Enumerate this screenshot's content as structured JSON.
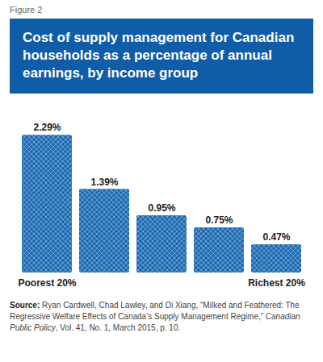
{
  "chart_data": {
    "type": "bar",
    "figure_label": "Figure 2",
    "title": "Cost of supply management for Canadian households as a percentage of annual earnings, by income group",
    "categories": [
      "Poorest 20%",
      null,
      null,
      null,
      "Richest 20%"
    ],
    "values": [
      2.29,
      1.39,
      0.95,
      0.75,
      0.47
    ],
    "value_labels": [
      "2.29%",
      "1.39%",
      "0.95%",
      "0.75%",
      "0.47%"
    ],
    "data_labels": true,
    "color": "#1f6cb3",
    "ylim": [
      0,
      2.6
    ],
    "tick_labels": "x",
    "grid": false,
    "source": {
      "label": "Source:",
      "text": "Ryan Cardwell, Chad Lawley, and Di Xiang, “Milked and Feathered: The Regressive Welfare Effects of Canada’s Supply Management Regime,”",
      "journal": "Canadian Public Policy",
      "details": ", Vol. 41, No. 1, March 2015, p. 10."
    }
  }
}
